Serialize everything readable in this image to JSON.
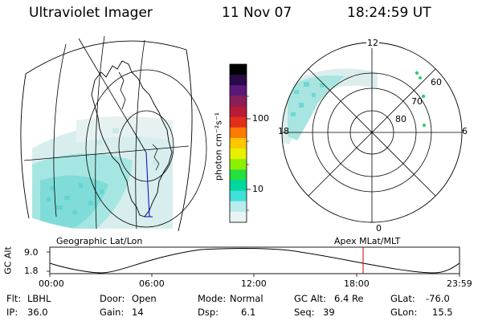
{
  "header": {
    "instrument": "Ultraviolet Imager",
    "date": "11 Nov 07",
    "time": "18:24:59 UT"
  },
  "left_panel": {
    "caption": "Geographic Lat/Lon"
  },
  "right_panel": {
    "caption": "Apex MLat/MLT",
    "mlt_labels": {
      "top": "12",
      "left": "18",
      "right": "6",
      "bottom": "0"
    },
    "mlat_labels": [
      "60",
      "70",
      "80"
    ]
  },
  "colorbar": {
    "unit_label": "photon cm⁻²s⁻¹",
    "ticks": [
      "100",
      "10"
    ],
    "colors": [
      "#000000",
      "#2a0a4a",
      "#5a1a7a",
      "#8a1f5a",
      "#b81a3a",
      "#e0301a",
      "#ff7a00",
      "#ffc800",
      "#e6f000",
      "#8cf000",
      "#24e040",
      "#00d8a0",
      "#40e0d8",
      "#b8ecec",
      "#eaf4f4"
    ]
  },
  "altitude_plot": {
    "ylabel": "GC Alt",
    "y_ticks": [
      "9.0",
      "1.8"
    ],
    "x_ticks": [
      "00:00",
      "06:00",
      "12:00",
      "18:00",
      "23:59"
    ],
    "current_time_marker_color": "#cc0000"
  },
  "info": {
    "flt_label": "Flt:",
    "flt_value": "LBHL",
    "ip_label": "IP:",
    "ip_value": "36.0",
    "door_label": "Door:",
    "door_value": "Open",
    "gain_label": "Gain:",
    "gain_value": "14",
    "mode_label": "Mode:",
    "mode_value": "Normal",
    "dsp_label": "Dsp:",
    "dsp_value": "6.1",
    "gcalt_label": "GC Alt:",
    "gcalt_value": "6.4 Re",
    "seq_label": "Seq:",
    "seq_value": "39",
    "glat_label": "GLat:",
    "glat_value": "-76.0",
    "glon_label": "GLon:",
    "glon_value": "15.5"
  }
}
